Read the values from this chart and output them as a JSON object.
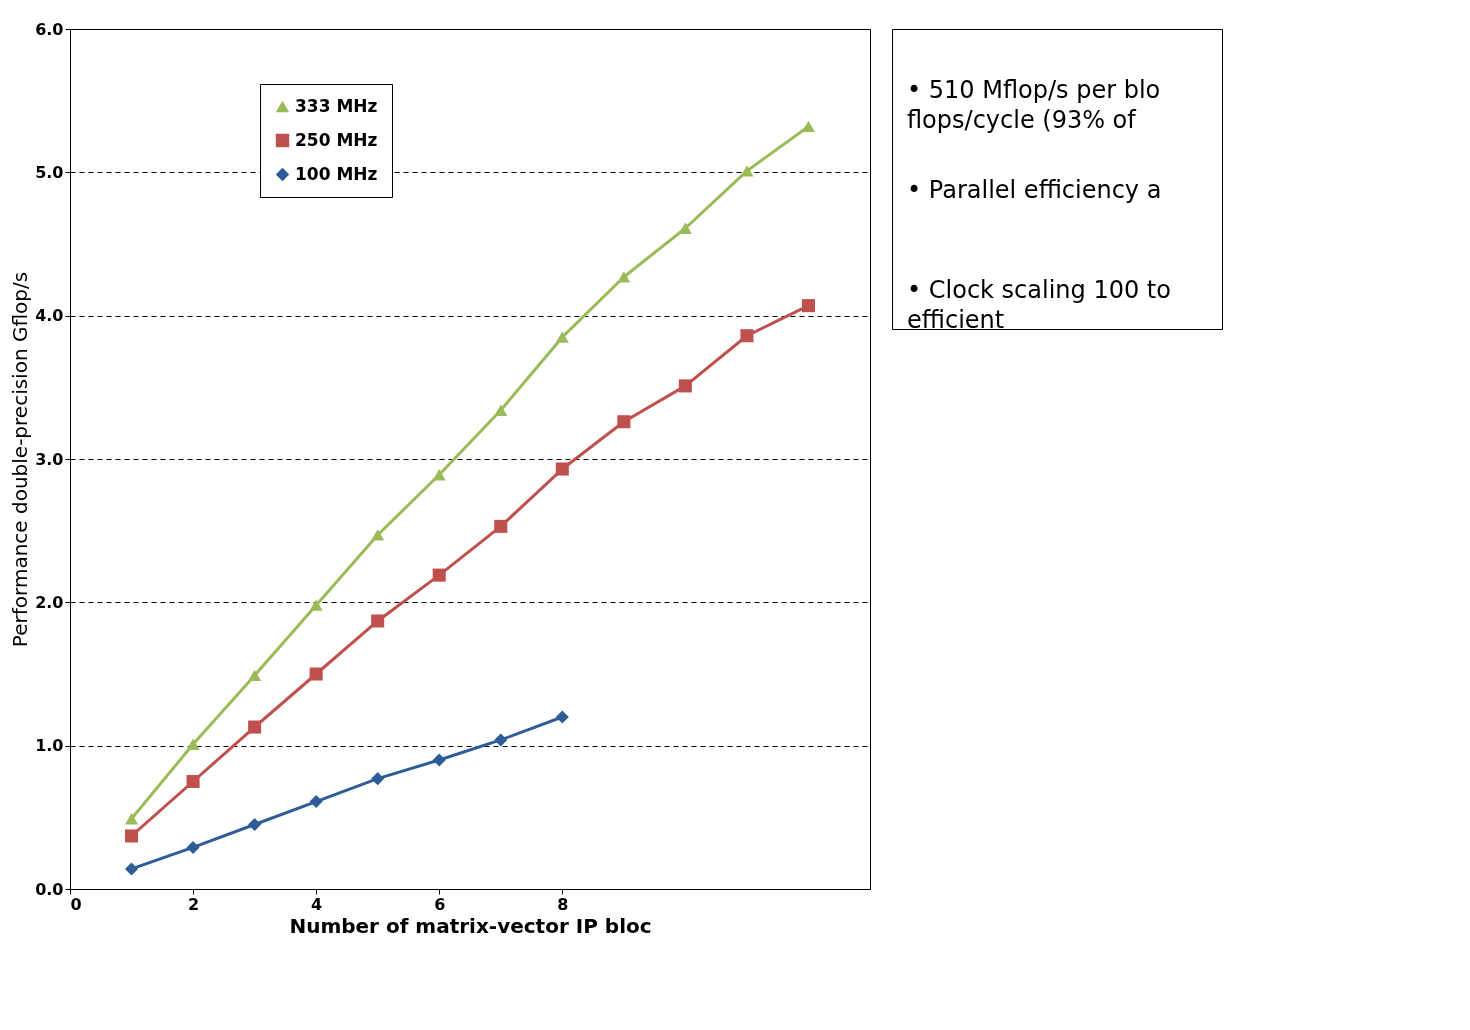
{
  "chart_data": {
    "type": "line",
    "xlabel": "Number of matrix-vector IP bloc",
    "ylabel": "Performance double-precision Gflop/s",
    "x": [
      1,
      2,
      3,
      4,
      5,
      6,
      7,
      8,
      9,
      10,
      11,
      12
    ],
    "series": [
      {
        "name": "333 MHz",
        "color": "#9bbb59",
        "marker": "triangle",
        "values": [
          0.49,
          1.01,
          1.49,
          1.98,
          2.47,
          2.89,
          3.34,
          3.85,
          4.27,
          4.61,
          5.01,
          5.32
        ]
      },
      {
        "name": "250 MHz",
        "color": "#c0504d",
        "marker": "square",
        "values": [
          0.37,
          0.75,
          1.13,
          1.5,
          1.87,
          2.19,
          2.53,
          2.93,
          3.26,
          3.51,
          3.86,
          4.07
        ]
      },
      {
        "name": "100 MHz",
        "color": "#2e5c99",
        "marker": "diamond",
        "values": [
          0.14,
          0.29,
          0.45,
          0.61,
          0.77,
          0.9,
          1.04,
          1.2,
          null,
          null,
          null,
          null
        ]
      }
    ],
    "xlim": [
      0,
      13
    ],
    "xticks": [
      0,
      2,
      4,
      6,
      8
    ],
    "ylim": [
      0,
      6
    ],
    "yticks": [
      {
        "value": 0,
        "label": "0.0"
      },
      {
        "value": 1,
        "label": "1.0"
      },
      {
        "value": 2,
        "label": "2.0"
      },
      {
        "value": 3,
        "label": "3.0"
      },
      {
        "value": 4,
        "label": "4.0"
      },
      {
        "value": 5,
        "label": "5.0"
      },
      {
        "value": 6,
        "label": "6.0"
      }
    ],
    "grid": "y",
    "line_style": "solid",
    "legend": "top left",
    "annotations": [
      "• 510 Mflop/s per blo\n   flops/cycle (93% of",
      "• Parallel efficiency a",
      "• Clock scaling 100 to\n   efficient"
    ]
  }
}
